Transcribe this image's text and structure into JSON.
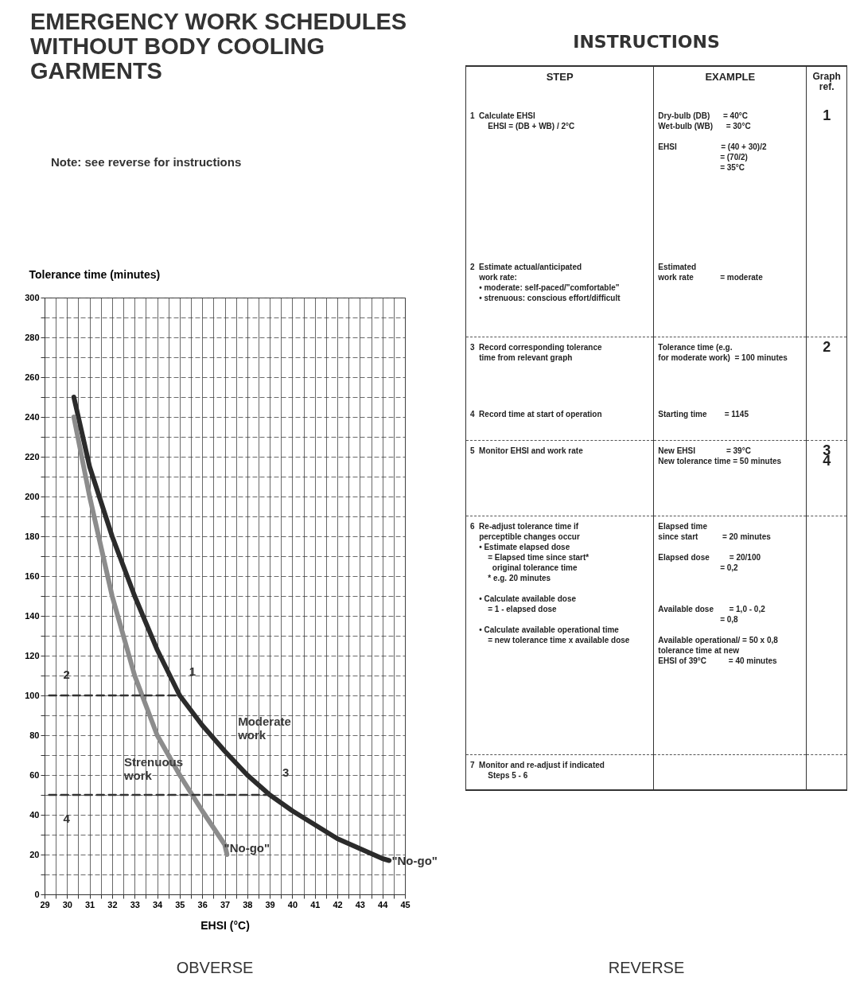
{
  "chart_data": [
    {
      "type": "line",
      "title": "EMERGENCY WORK SCHEDULES WITHOUT BODY COOLING GARMENTS",
      "subtitle": "Note:  see reverse for instructions",
      "ylabel": "Tolerance time (minutes)",
      "xlabel": "EHSI (°C)",
      "xlim": [
        29,
        45
      ],
      "ylim": [
        0,
        300
      ],
      "xticks": [
        29,
        {
          "value": 29.5,
          "label": null
        },
        30,
        {
          "value": 30.5,
          "label": null
        },
        31,
        {
          "value": 31.5,
          "label": null
        },
        32,
        {
          "value": 32.5,
          "label": null
        },
        33,
        {
          "value": 33.5,
          "label": null
        },
        34,
        {
          "value": 34.5,
          "label": null
        },
        35,
        {
          "value": 35.5,
          "label": null
        },
        36,
        {
          "value": 36.5,
          "label": null
        },
        37,
        {
          "value": 37.5,
          "label": null
        },
        38,
        {
          "value": 38.5,
          "label": null
        },
        39,
        {
          "value": 39.5,
          "label": null
        },
        40,
        {
          "value": 40.5,
          "label": null
        },
        41,
        {
          "value": 41.5,
          "label": null
        },
        42,
        {
          "value": 42.5,
          "label": null
        },
        43,
        {
          "value": 43.5,
          "label": null
        },
        44,
        {
          "value": 44.5,
          "label": null
        },
        45
      ],
      "yticks": [
        0,
        {
          "value": 10,
          "label": null
        },
        20,
        {
          "value": 30,
          "label": null
        },
        40,
        {
          "value": 50,
          "label": null
        },
        60,
        {
          "value": 70,
          "label": null
        },
        80,
        {
          "value": 90,
          "label": null
        },
        100,
        {
          "value": 110,
          "label": null
        },
        120,
        {
          "value": 130,
          "label": null
        },
        140,
        {
          "value": 150,
          "label": null
        },
        160,
        {
          "value": 170,
          "label": null
        },
        180,
        {
          "value": 190,
          "label": null
        },
        200,
        {
          "value": 210,
          "label": null
        },
        220,
        {
          "value": 230,
          "label": null
        },
        240,
        {
          "value": 250,
          "label": null
        },
        260,
        {
          "value": 270,
          "label": null
        },
        280,
        {
          "value": 290,
          "label": null
        },
        300
      ],
      "grid": true,
      "series": [
        {
          "name": "Moderate\nwork",
          "color": "#2b2b2b",
          "x": [
            30.3,
            31,
            32,
            33,
            34,
            35,
            36,
            37,
            38,
            39,
            40,
            41,
            42,
            43,
            44,
            44.3
          ],
          "values": [
            250,
            215,
            180,
            150,
            123,
            100,
            85,
            72,
            60,
            50,
            42,
            35,
            28,
            23,
            18,
            17
          ]
        },
        {
          "name": "Strenuous\nwork",
          "color": "#8c8c8c",
          "x": [
            30.3,
            31,
            32,
            33,
            34,
            35,
            36,
            37,
            37.1
          ],
          "values": [
            240,
            200,
            150,
            110,
            80,
            60,
            42,
            25,
            20
          ]
        },
        {
          "color": "#333333",
          "line_style": "dashed",
          "x": [
            29.2,
            35
          ],
          "values": [
            100,
            100
          ]
        },
        {
          "color": "#333333",
          "line_style": "dashed",
          "x": [
            29.2,
            39
          ],
          "values": [
            50,
            50
          ]
        }
      ],
      "annotations": [
        {
          "text": "1",
          "x": 35,
          "y": 100
        },
        {
          "text": "2",
          "x": 29.2,
          "y": 100
        },
        {
          "text": "3",
          "x": 39,
          "y": 50
        },
        {
          "text": "4",
          "x": 29.2,
          "y": 50
        },
        {
          "text": "\"No-go\"",
          "x": 37.1,
          "y": 20
        },
        {
          "text": "\"No-go\"",
          "x": 44.3,
          "y": 17
        },
        "OBVERSE"
      ]
    },
    {
      "type": "other",
      "title": "INSTRUCTIONS",
      "annotations": [
        "STEP",
        "EXAMPLE",
        "Graph ref.",
        "1  Calculate EHSI\n        EHSI = (DB + WB) / 2°C",
        "Dry-bulb (DB)      = 40°C\nWet-bulb (WB)      = 30°C\n\nEHSI                    = (40 + 30)/2\n                            = (70/2)\n                            = 35°C",
        "1",
        "2  Estimate actual/anticipated\n    work rate:\n    • moderate: self-paced/\"comfortable\"\n    • strenuous: conscious effort/difficult",
        "Estimated\nwork rate            = moderate",
        "3  Record corresponding tolerance\n    time from relevant graph",
        "Tolerance time (e.g.\nfor moderate work)  = 100 minutes",
        "2",
        "4  Record time at start of operation",
        "Starting time        = 1145",
        "5  Monitor EHSI and work rate",
        "New EHSI              = 39°C\nNew tolerance time = 50 minutes",
        "3\n4",
        "6  Re-adjust tolerance time if\n    perceptible changes occur\n    • Estimate elapsed dose\n        = Elapsed time since start*\n          original tolerance time\n        * e.g. 20 minutes\n\n    • Calculate available dose\n        = 1 - elapsed dose\n\n    • Calculate available operational time\n        = new tolerance time x available dose",
        "Elapsed time\nsince start           = 20 minutes\n\nElapsed dose         = 20/100\n                            = 0,2\n\n\n\nAvailable dose       = 1,0 - 0,2\n                            = 0,8\n\nAvailable operational/ = 50 x 0,8\ntolerance time at new\nEHSI of 39°C          = 40 minutes",
        "7  Monitor and re-adjust if indicated\n        Steps 5 - 6",
        "REVERSE"
      ]
    }
  ]
}
